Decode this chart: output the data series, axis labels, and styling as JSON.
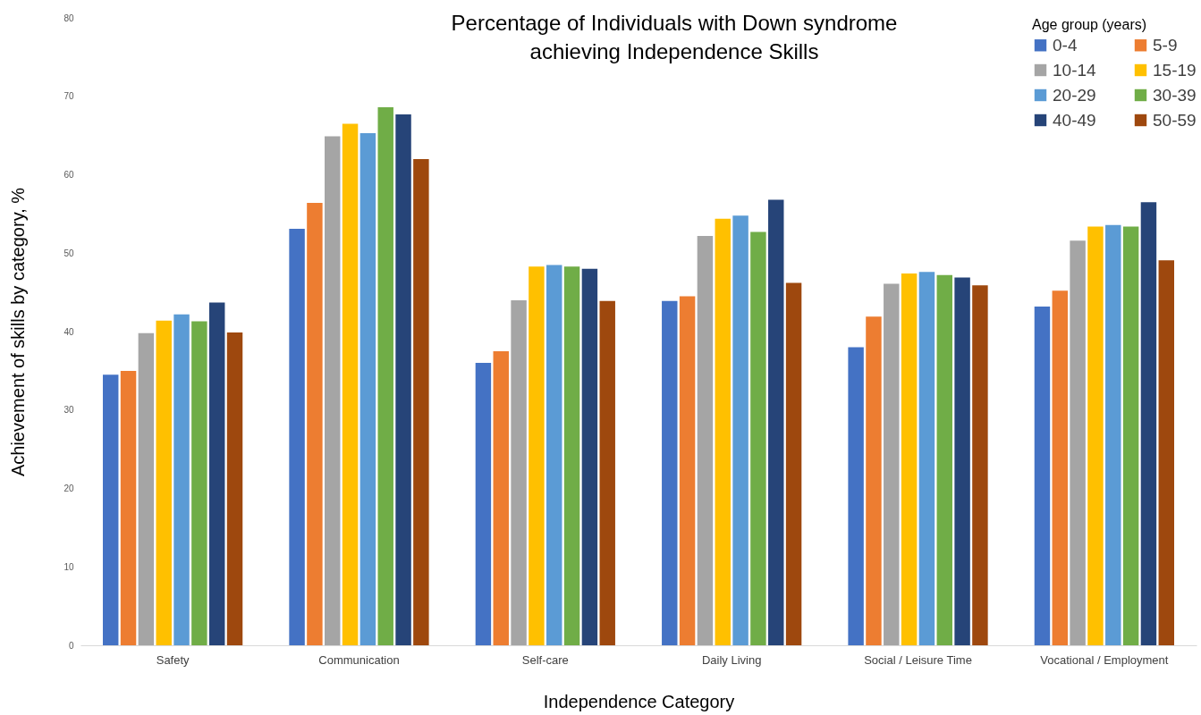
{
  "chart_data": {
    "type": "bar",
    "title": "Percentage of Individuals with Down syndrome\nachieving Independence Skills",
    "xlabel": "Independence Category",
    "ylabel": "Achievement of skills by category, %",
    "legend_title": "Age group (years)",
    "legend": "top right",
    "categories": [
      "Safety",
      "Communication",
      "Self-care",
      "Daily Living",
      "Social / Leisure Time",
      "Vocational / Employment"
    ],
    "ylim": [
      0,
      80
    ],
    "yticks": [
      0,
      10,
      20,
      30,
      40,
      50,
      60,
      70,
      80
    ],
    "series": [
      {
        "name": "0-4",
        "color": "#4472c4",
        "values": [
          34.5,
          53.1,
          36.0,
          43.9,
          38.0,
          43.2
        ]
      },
      {
        "name": "5-9",
        "color": "#ed7d31",
        "values": [
          35.0,
          56.4,
          37.5,
          44.5,
          41.9,
          45.2
        ]
      },
      {
        "name": "10-14",
        "color": "#a5a5a5",
        "values": [
          39.8,
          64.9,
          44.0,
          52.2,
          46.1,
          51.6
        ]
      },
      {
        "name": "15-19",
        "color": "#ffc000",
        "values": [
          41.4,
          66.5,
          48.3,
          54.4,
          47.4,
          53.4
        ]
      },
      {
        "name": "20-29",
        "color": "#5b9bd5",
        "values": [
          42.2,
          65.3,
          48.5,
          54.8,
          47.6,
          53.6
        ]
      },
      {
        "name": "30-39",
        "color": "#70ad47",
        "values": [
          41.3,
          68.6,
          48.3,
          52.7,
          47.2,
          53.4
        ]
      },
      {
        "name": "40-49",
        "color": "#264478",
        "values": [
          43.7,
          67.7,
          48.0,
          56.8,
          46.9,
          56.5
        ]
      },
      {
        "name": "50-59",
        "color": "#9e480e",
        "values": [
          39.9,
          62.0,
          43.9,
          46.2,
          45.9,
          49.1
        ]
      }
    ]
  }
}
